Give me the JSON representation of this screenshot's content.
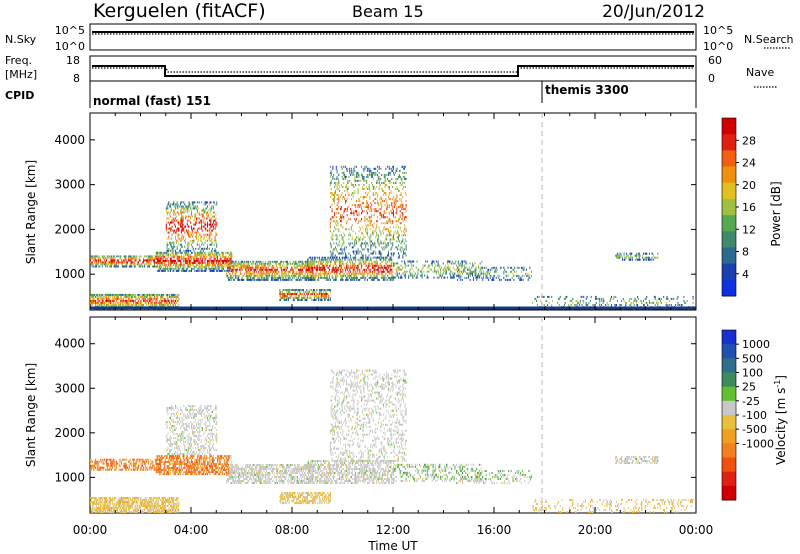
{
  "header": {
    "station": "Kerguelen (fitACF)",
    "beam": "Beam 15",
    "date": "20/Jun/2012"
  },
  "summary_panels": {
    "nsky_label": "N.Sky",
    "nsearch_label": "N.Search",
    "nsky_ticks": [
      "10^5",
      "10^0"
    ],
    "nsearch_ticks": [
      "10^5",
      "10^0"
    ],
    "freq_label_1": "Freq.",
    "freq_label_2": "[MHz]",
    "freq_ticks": [
      "18",
      "8"
    ],
    "nave_label": "Nave",
    "nave_ticks": [
      "60",
      "0"
    ],
    "cpid_label": "CPID",
    "cpid_segments": [
      {
        "name": "normal (fast) 151",
        "start_hour": 0
      },
      {
        "name": "themis 3300",
        "start_hour": 18
      }
    ]
  },
  "chart_data": [
    {
      "type": "heatmap",
      "name": "power",
      "ylabel": "Slant Range [km]",
      "xlabel": "",
      "xlim": [
        0,
        24
      ],
      "ylim": [
        200,
        4600
      ],
      "yticks": [
        "1000",
        "2000",
        "3000",
        "4000"
      ],
      "colorbar": {
        "label": "Power [dB]",
        "ticks": [
          "4",
          "8",
          "12",
          "16",
          "20",
          "24",
          "28"
        ],
        "colors": [
          "#1030e0",
          "#1a40b0",
          "#2a6a90",
          "#3f8a6a",
          "#58a850",
          "#a0c040",
          "#e0c020",
          "#f09010",
          "#f06010",
          "#e02010",
          "#d00000"
        ]
      }
    },
    {
      "type": "heatmap",
      "name": "velocity",
      "ylabel": "Slant Range [km]",
      "xlabel": "Time UT",
      "xlim": [
        0,
        24
      ],
      "ylim": [
        200,
        4600
      ],
      "yticks": [
        "1000",
        "2000",
        "3000",
        "4000"
      ],
      "xticks": [
        "00:00",
        "04:00",
        "08:00",
        "12:00",
        "16:00",
        "20:00",
        "00:00"
      ],
      "colorbar": {
        "label": "Velocity [m s",
        "label_sup": "-1",
        "label_end": "]",
        "ticks": [
          "1000",
          "500",
          "100",
          "25",
          "-25",
          "-100",
          "-500",
          "-1000"
        ],
        "colors": [
          "#1830d0",
          "#2050b0",
          "#2f6e8a",
          "#3d8a5e",
          "#60c030",
          "#c8c8c8",
          "#e8c040",
          "#f0a020",
          "#f08020",
          "#f05010",
          "#e02010",
          "#d00000"
        ]
      }
    }
  ]
}
